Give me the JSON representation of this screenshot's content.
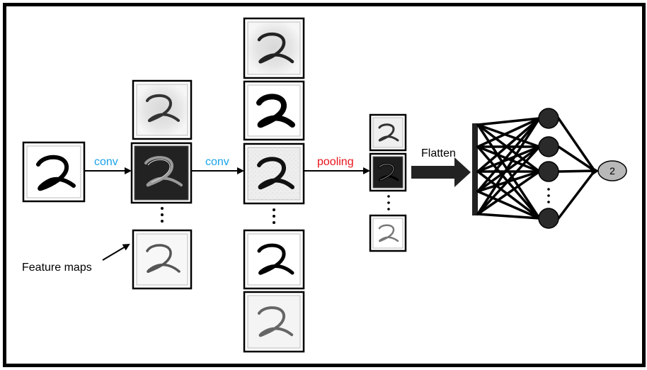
{
  "labels": {
    "conv_1": "conv",
    "conv_2": "conv",
    "pooling": "pooling",
    "flatten": "Flatten",
    "feature_maps": "Feature maps",
    "output": "2"
  },
  "colors": {
    "conv": "#1aa3e8",
    "pooling": "#e8141b",
    "text": "#000000",
    "output_node": "#b8b8b8",
    "neuron": "#2a2a2a"
  }
}
